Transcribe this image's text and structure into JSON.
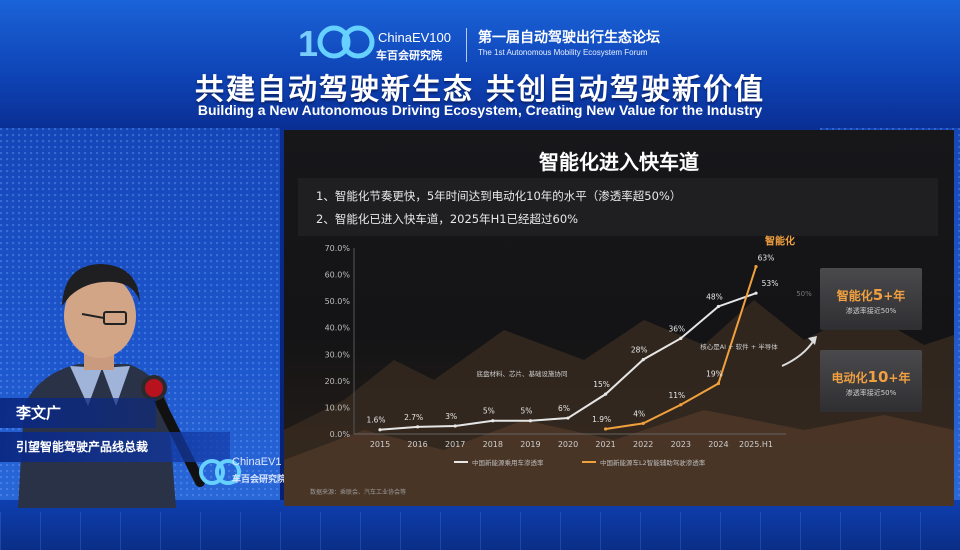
{
  "header": {
    "logo_text": "ChinaEV100",
    "logo_cn": "车百会研究院",
    "forum_cn": "第一届自动驾驶出行生态论坛",
    "forum_en": "The 1st Autonomous Mobility Ecosystem Forum",
    "title_cn": "共建自动驾驶新生态  共创自动驾驶新价值",
    "title_en": "Building a New Autonomous Driving Ecosystem, Creating New Value for the Industry"
  },
  "speaker": {
    "name": "李文广",
    "role": "引望智能驾驶产品线总裁"
  },
  "lower_logo": {
    "text": "ChinaEV1",
    "cn": "车百会研究院"
  },
  "slide": {
    "title": "智能化进入快车道",
    "bullets": [
      "1、智能化节奏更快，5年时间达到电动化10年的水平（渗透率超50%）",
      "2、智能化已进入快车道，2025年H1已经超过60%"
    ],
    "annotations": {
      "ev_driver": "底盘材料、芯片、基础设施协同",
      "ai_driver": "核心是AI + 软件 + 半导体",
      "series_tag": "智能化",
      "faint_label": "50%"
    },
    "cards": [
      {
        "label": "智能化",
        "num": "5",
        "unit": "+年",
        "sub": "渗透率接近50%"
      },
      {
        "label": "电动化",
        "num": "10",
        "unit": "+年",
        "sub": "渗透率接近50%"
      }
    ],
    "source": "数据来源：乘联会、汽车工业协会等",
    "colors": {
      "ev_line": "#e6e6e6",
      "adas_line": "#f0a03c",
      "accent": "#f0a040"
    }
  },
  "chart_data": {
    "type": "line",
    "categories": [
      "2015",
      "2016",
      "2017",
      "2018",
      "2019",
      "2020",
      "2021",
      "2022",
      "2023",
      "2024",
      "2025.H1"
    ],
    "ylim": [
      0,
      70
    ],
    "yticks": [
      "0.0%",
      "10.0%",
      "20.0%",
      "30.0%",
      "40.0%",
      "50.0%",
      "60.0%",
      "70.0%"
    ],
    "series": [
      {
        "name": "中国新能源乘用车渗透率",
        "values": [
          1.6,
          2.7,
          3,
          5,
          5,
          6,
          15,
          28,
          36,
          48,
          53
        ],
        "labels": [
          "1.6%",
          "2.7%",
          "3%",
          "5%",
          "5%",
          "6%",
          "15%",
          "28%",
          "36%",
          "48%",
          "53%"
        ]
      },
      {
        "name": "中国新能源车L2智能辅助驾驶渗透率",
        "values": [
          null,
          null,
          null,
          null,
          null,
          null,
          1.9,
          4,
          11,
          19,
          63
        ],
        "labels": [
          null,
          null,
          null,
          null,
          null,
          null,
          "1.9%",
          "4%",
          "11%",
          "19%",
          "63%"
        ]
      }
    ]
  }
}
